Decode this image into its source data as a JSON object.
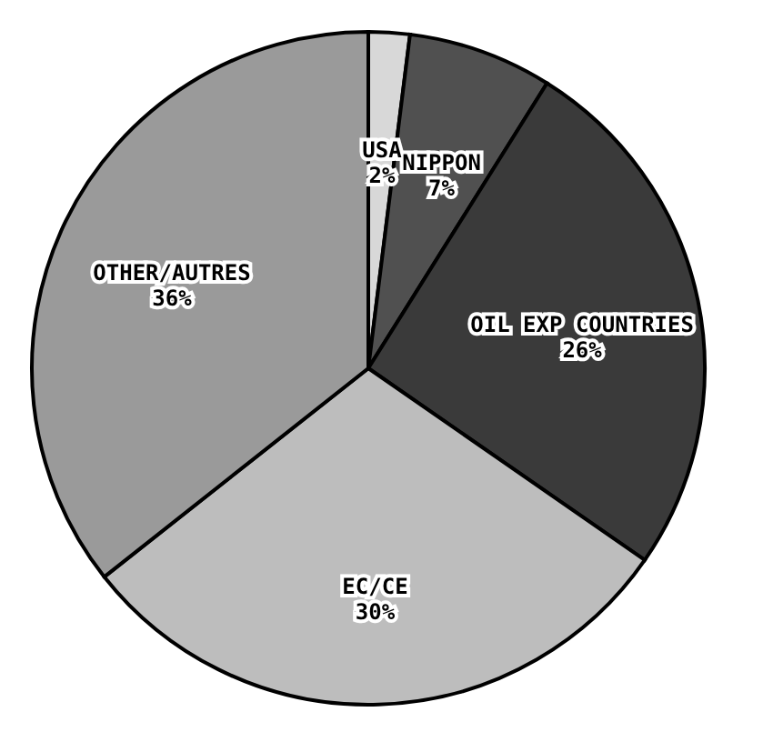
{
  "chart_data": {
    "type": "pie",
    "categories": [
      "USA",
      "NIPPON",
      "OIL EXP COUNTRIES",
      "EC/CE",
      "OTHER/AUTRES"
    ],
    "values": [
      2,
      7,
      26,
      30,
      36
    ],
    "value_labels": [
      "2%",
      "7%",
      "26%",
      "30%",
      "36%"
    ],
    "colors": [
      "#d8d8d8",
      "#505050",
      "#3a3a3a",
      "#bdbdbd",
      "#9a9a9a"
    ],
    "legend": false
  }
}
